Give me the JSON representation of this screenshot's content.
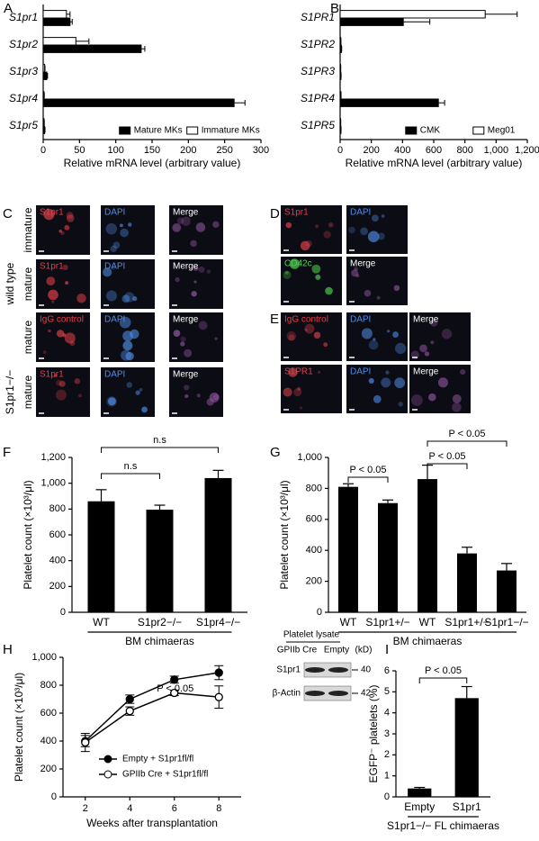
{
  "chart_data": [
    {
      "panel": "A",
      "type": "hbar",
      "categories": [
        "S1pr1",
        "S1pr2",
        "S1pr3",
        "S1pr4",
        "S1pr5"
      ],
      "series": [
        {
          "name": "Mature MKs",
          "color": "#000000",
          "values": [
            37,
            135,
            5,
            263,
            2
          ],
          "errors": [
            3,
            5,
            1,
            15,
            0.5
          ]
        },
        {
          "name": "Immature MKs",
          "color": "#ffffff",
          "values": [
            32,
            45,
            2,
            1,
            1
          ],
          "errors": [
            5,
            18,
            0.5,
            0.5,
            0.5
          ]
        }
      ],
      "xlim": [
        0,
        300
      ],
      "xticks": [
        0,
        50,
        100,
        150,
        200,
        250,
        300
      ],
      "xlabel": "Relative mRNA level (arbitrary value)",
      "legend": "lower right",
      "italic_categories": true
    },
    {
      "panel": "B",
      "type": "hbar",
      "categories": [
        "S1PR1",
        "S1PR2",
        "S1PR3",
        "S1PR4",
        "S1PR5"
      ],
      "series": [
        {
          "name": "CMK",
          "color": "#000000",
          "values": [
            405,
            8,
            5,
            630,
            5
          ],
          "errors": [
            170,
            2,
            1,
            40,
            1
          ]
        },
        {
          "name": "Meg01",
          "color": "#ffffff",
          "values": [
            930,
            4,
            3,
            5,
            3
          ],
          "errors": [
            205,
            1,
            1,
            1,
            1
          ]
        }
      ],
      "xlim": [
        0,
        1200
      ],
      "xticks": [
        0,
        200,
        400,
        600,
        800,
        {
          "value": 1000,
          "label": "1,000"
        },
        {
          "value": 1200,
          "label": "1,200"
        }
      ],
      "xlabel": "Relative mRNA level (arbitrary value)",
      "legend": "lower right",
      "italic_categories": true
    },
    {
      "panel": "F",
      "type": "bar",
      "categories": [
        "WT",
        "S1pr2−/−",
        "S1pr4−/−"
      ],
      "values": [
        860,
        795,
        1040
      ],
      "errors": [
        90,
        35,
        60
      ],
      "color": "#000000",
      "ylim": [
        0,
        1200
      ],
      "yticks": [
        0,
        200,
        400,
        600,
        800,
        {
          "value": 1000,
          "label": "1,000"
        },
        {
          "value": 1200,
          "label": "1,200"
        }
      ],
      "ylabel": "Platelet count (×10³/μl)",
      "group_label": "BM chimaeras",
      "annotations": [
        "n.s",
        "n.s"
      ]
    },
    {
      "panel": "G",
      "type": "bar",
      "categories": [
        "WT",
        "S1pr1+/−",
        "WT",
        "S1pr1+/−",
        "S1pr1−/−"
      ],
      "values": [
        810,
        705,
        860,
        380,
        270
      ],
      "errors": [
        20,
        20,
        90,
        40,
        45
      ],
      "color": "#000000",
      "ylim": [
        0,
        1000
      ],
      "yticks": [
        0,
        200,
        400,
        600,
        800,
        {
          "value": 1000,
          "label": "1,000"
        }
      ],
      "ylabel": "Platelet count (×10³/μl)",
      "group_label": "BM chimaeras",
      "annotations": [
        "P < 0.05",
        "P < 0.05",
        "P < 0.05"
      ]
    },
    {
      "panel": "H",
      "type": "line",
      "x": [
        2,
        4,
        6,
        8
      ],
      "xlim": [
        1,
        9
      ],
      "xticks": [
        2,
        4,
        6,
        8
      ],
      "ylim": [
        0,
        1000
      ],
      "yticks": [
        0,
        200,
        400,
        600,
        800,
        {
          "value": 1000,
          "label": "1,000"
        }
      ],
      "series": [
        {
          "name": "Empty + S1pr1fl/fl",
          "color": "#000000",
          "marker": "filled",
          "values": [
            400,
            700,
            840,
            890
          ],
          "errors": [
            40,
            30,
            25,
            50
          ]
        },
        {
          "name": "GPIIb Cre + S1pr1fl/fl",
          "color": "#000000",
          "marker": "open",
          "values": [
            390,
            615,
            745,
            715
          ],
          "errors": [
            65,
            30,
            20,
            80
          ]
        }
      ],
      "xlabel": "Weeks after transplantation",
      "ylabel": "Platelet count (×10³/μl)",
      "annotations": [
        "P < 0.05"
      ],
      "legend": "lower right"
    },
    {
      "panel": "I",
      "type": "bar",
      "categories": [
        "Empty",
        "S1pr1"
      ],
      "values": [
        0.4,
        4.7
      ],
      "errors": [
        0.05,
        0.55
      ],
      "color": "#000000",
      "ylim": [
        0,
        6
      ],
      "yticks": [
        0,
        1,
        2,
        3,
        4,
        5,
        6
      ],
      "ylabel": "EGFP⁻ platelets (%)",
      "group_label": "S1pr1−/− FL chimaeras",
      "annotations": [
        "P < 0.05"
      ]
    }
  ],
  "panels": {
    "C": {
      "panel": "C",
      "row_labels": [
        "immature",
        "mature",
        "mature",
        "mature"
      ],
      "group_labels": [
        "wild type",
        "S1pr1−/−"
      ],
      "images": [
        [
          {
            "text": "S1pr1",
            "color": "#e0404a"
          },
          {
            "text": "DAPI",
            "color": "#4f8ee8"
          },
          {
            "text": "Merge",
            "color": "#ffffff"
          }
        ],
        [
          {
            "text": "S1pr1",
            "color": "#e0404a"
          },
          {
            "text": "DAPI",
            "color": "#4f8ee8"
          },
          {
            "text": "Merge",
            "color": "#ffffff"
          }
        ],
        [
          {
            "text": "IgG control",
            "color": "#e0404a"
          },
          {
            "text": "DAPI",
            "color": "#4f8ee8"
          },
          {
            "text": "Merge",
            "color": "#ffffff"
          }
        ],
        [
          {
            "text": "S1pr1",
            "color": "#e0404a"
          },
          {
            "text": "DAPI",
            "color": "#4f8ee8"
          },
          {
            "text": "Merge",
            "color": "#ffffff"
          }
        ]
      ]
    },
    "D": {
      "panel": "D",
      "images": [
        [
          {
            "text": "S1pr1",
            "color": "#e0404a"
          },
          {
            "text": "DAPI",
            "color": "#4f8ee8"
          }
        ],
        [
          {
            "text": "CD42c",
            "color": "#4fd04f"
          },
          {
            "text": "Merge",
            "color": "#ffffff"
          }
        ]
      ]
    },
    "E": {
      "panel": "E",
      "images": [
        [
          {
            "text": "IgG control",
            "color": "#e0404a"
          },
          {
            "text": "DAPI",
            "color": "#4f8ee8"
          },
          {
            "text": "Merge",
            "color": "#ffffff"
          }
        ],
        [
          {
            "text": "S1PR1",
            "color": "#e0404a"
          },
          {
            "text": "DAPI",
            "color": "#4f8ee8"
          },
          {
            "text": "Merge",
            "color": "#ffffff"
          }
        ]
      ]
    },
    "blot": {
      "title": "Platelet lysate",
      "lanes": [
        "GPIIb Cre",
        "Empty"
      ],
      "unit": "(kD)",
      "rows": [
        {
          "label": "S1pr1",
          "kd": "40"
        },
        {
          "label": "β-Actin",
          "kd": "42"
        }
      ]
    }
  }
}
